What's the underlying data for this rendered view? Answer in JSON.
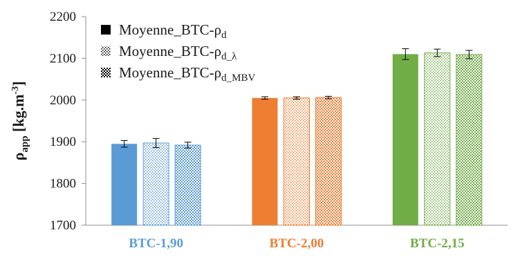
{
  "chart_data": {
    "type": "bar",
    "title": "",
    "xlabel": "",
    "ylabel": {
      "base": "ρ",
      "sub": "app",
      "unit_open": " [kg.m",
      "unit_sup": "-3",
      "unit_close": "]"
    },
    "ylim": [
      1700,
      2200
    ],
    "yticks": [
      1700,
      1800,
      1900,
      2000,
      2100,
      2200
    ],
    "grid": false,
    "legend_position": "top-left",
    "categories": [
      "BTC-1,90",
      "BTC-2,00",
      "BTC-2,15"
    ],
    "category_colors": [
      "#5b9bd5",
      "#ed7d31",
      "#70ad47"
    ],
    "series": [
      {
        "name": "Moyenne_BTC-ρd",
        "legend": {
          "base": "Moyenne_BTC-ρ",
          "sub": "d"
        },
        "pattern": "solid",
        "values": [
          1895,
          2005,
          2110
        ],
        "errors": [
          8,
          3,
          13
        ]
      },
      {
        "name": "Moyenne_BTC-ρd_λ",
        "legend": {
          "base": "Moyenne_BTC-ρ",
          "sub": "d_λ"
        },
        "pattern": "dotted",
        "values": [
          1897,
          2005,
          2113
        ],
        "errors": [
          11,
          3,
          9
        ]
      },
      {
        "name": "Moyenne_BTC-ρd_MBV",
        "legend": {
          "base": "Moyenne_BTC-ρ",
          "sub": "d_MBV"
        },
        "pattern": "checker",
        "values": [
          1892,
          2006,
          2109
        ],
        "errors": [
          7,
          3,
          10
        ]
      }
    ]
  }
}
